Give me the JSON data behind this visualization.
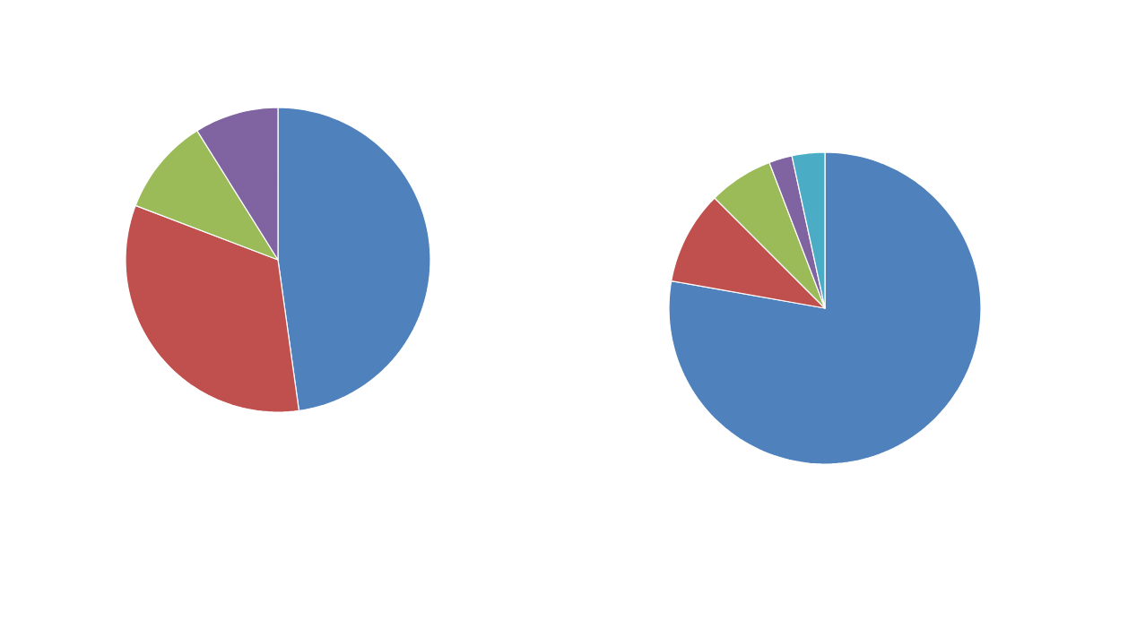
{
  "chart_data": [
    {
      "type": "pie",
      "categories": [
        null,
        null,
        null,
        null
      ],
      "values": [
        47.8,
        33,
        10.3,
        8.9
      ],
      "colors": [
        "#4f81bd",
        "#c0504d",
        "#9bbb59",
        "#8064a2"
      ]
    },
    {
      "type": "pie",
      "categories": [
        null,
        null,
        null,
        null,
        null
      ],
      "values": [
        77.8,
        9.7,
        6.7,
        2.4,
        3.4
      ],
      "colors": [
        "#4f81bd",
        "#c0504d",
        "#9bbb59",
        "#8064a2",
        "#4bacc6"
      ]
    }
  ]
}
